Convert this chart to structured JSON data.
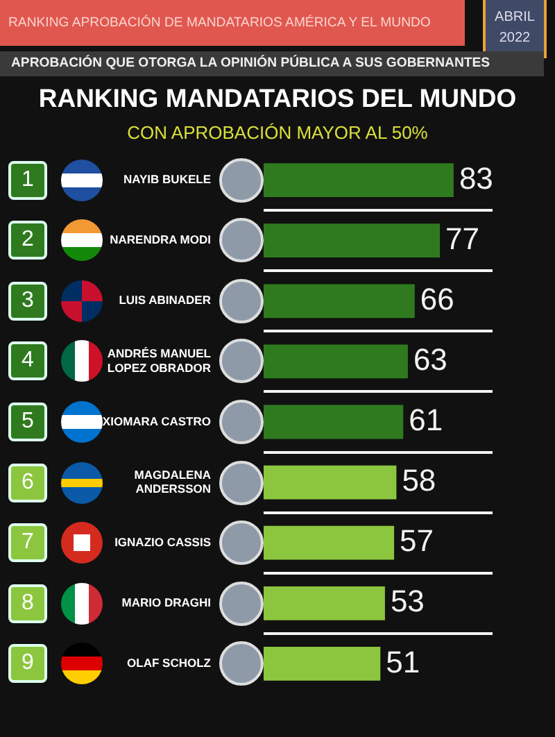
{
  "chart_data": {
    "type": "bar",
    "orientation": "horizontal",
    "title": "RANKING MANDATARIOS DEL MUNDO",
    "subtitle": "CON APROBACIÓN MAYOR AL 50%",
    "categories": [
      "NAYIB BUKELE",
      "NARENDRA MODI",
      "LUIS ABINADER",
      "ANDRÉS MANUEL LOPEZ OBRADOR",
      "XIOMARA CASTRO",
      "MAGDALENA ANDERSSON",
      "IGNAZIO CASSIS",
      "MARIO DRAGHI",
      "OLAF SCHOLZ"
    ],
    "values": [
      83,
      77,
      66,
      63,
      61,
      58,
      57,
      53,
      51
    ],
    "colors": [
      "#2f7a1f",
      "#2f7a1f",
      "#2f7a1f",
      "#2f7a1f",
      "#2f7a1f",
      "#8cc63e",
      "#8cc63e",
      "#8cc63e",
      "#8cc63e"
    ],
    "data_labels": true,
    "grid": "y",
    "legend": false,
    "tick_labels": "y",
    "annotations": [
      "RANKING APROBACIÓN DE MANDATARIOS AMÉRICA Y EL MUNDO",
      "ABRIL 2022",
      "APROBACIÓN QUE OTORGA LA OPINIÓN PÚBLICA A SUS GOBERNANTES",
      "1",
      "2",
      "3",
      "4",
      "5",
      "6",
      "7",
      "8",
      "9"
    ]
  }
}
